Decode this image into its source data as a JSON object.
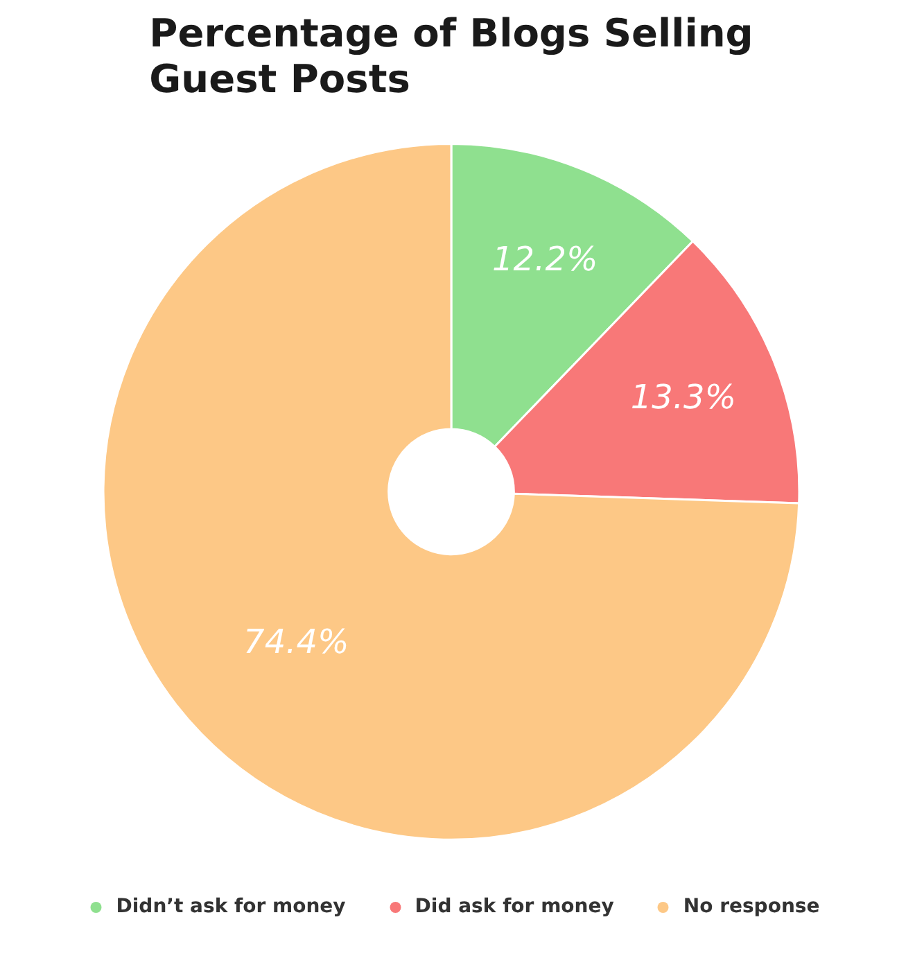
{
  "chart_data": {
    "type": "donut",
    "title": "Percentage of Blogs Selling Guest Posts",
    "categories": [
      "Didn’t ask for money",
      "Did ask for money",
      "No response"
    ],
    "values": [
      12.2,
      13.3,
      74.4
    ],
    "colors": [
      "#8fe08f",
      "#f87878",
      "#fdc886"
    ],
    "value_labels": [
      "12.2%",
      "13.3%",
      "74.4%"
    ],
    "legend": "bottom"
  }
}
